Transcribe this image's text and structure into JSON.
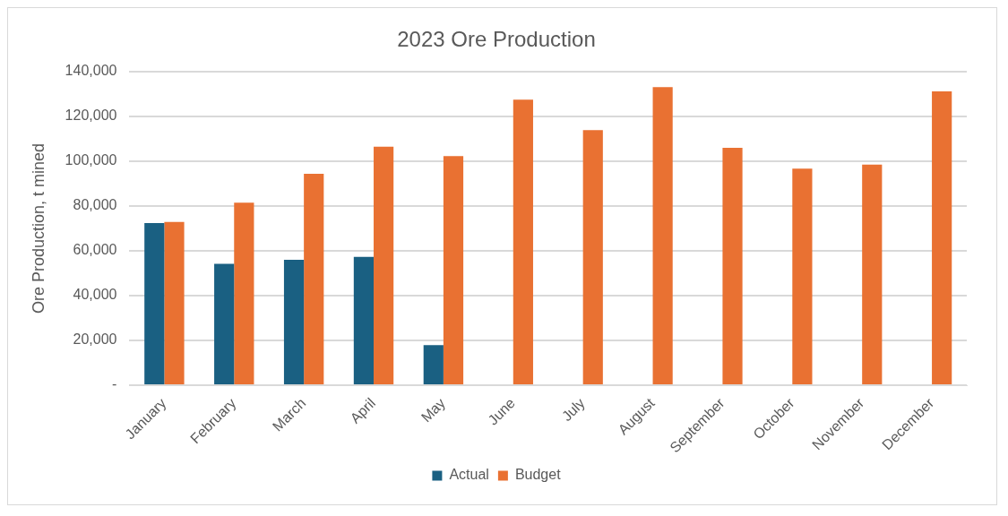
{
  "chart_data": {
    "type": "bar",
    "title": "2023 Ore Production",
    "ylabel": "Ore Production, t mined",
    "categories": [
      "January",
      "February",
      "March",
      "April",
      "May",
      "June",
      "July",
      "August",
      "September",
      "October",
      "November",
      "December"
    ],
    "series": [
      {
        "name": "Actual",
        "color": "#1a6082",
        "values": [
          72400,
          54200,
          56000,
          57300,
          17900,
          null,
          null,
          null,
          null,
          null,
          null,
          null
        ]
      },
      {
        "name": "Budget",
        "color": "#e97132",
        "values": [
          72900,
          81500,
          94400,
          106400,
          102300,
          127400,
          113800,
          133000,
          105900,
          96700,
          98500,
          131100
        ]
      }
    ],
    "ylim": [
      0,
      140000
    ],
    "yticks": [
      {
        "value": 0,
        "label": "-"
      },
      {
        "value": 20000,
        "label": "20,000"
      },
      {
        "value": 40000,
        "label": "40,000"
      },
      {
        "value": 60000,
        "label": "60,000"
      },
      {
        "value": 80000,
        "label": "80,000"
      },
      {
        "value": 100000,
        "label": "100,000"
      },
      {
        "value": 120000,
        "label": "120,000"
      },
      {
        "value": 140000,
        "label": "140,000"
      }
    ],
    "grid": "y",
    "legend": "bottom"
  }
}
